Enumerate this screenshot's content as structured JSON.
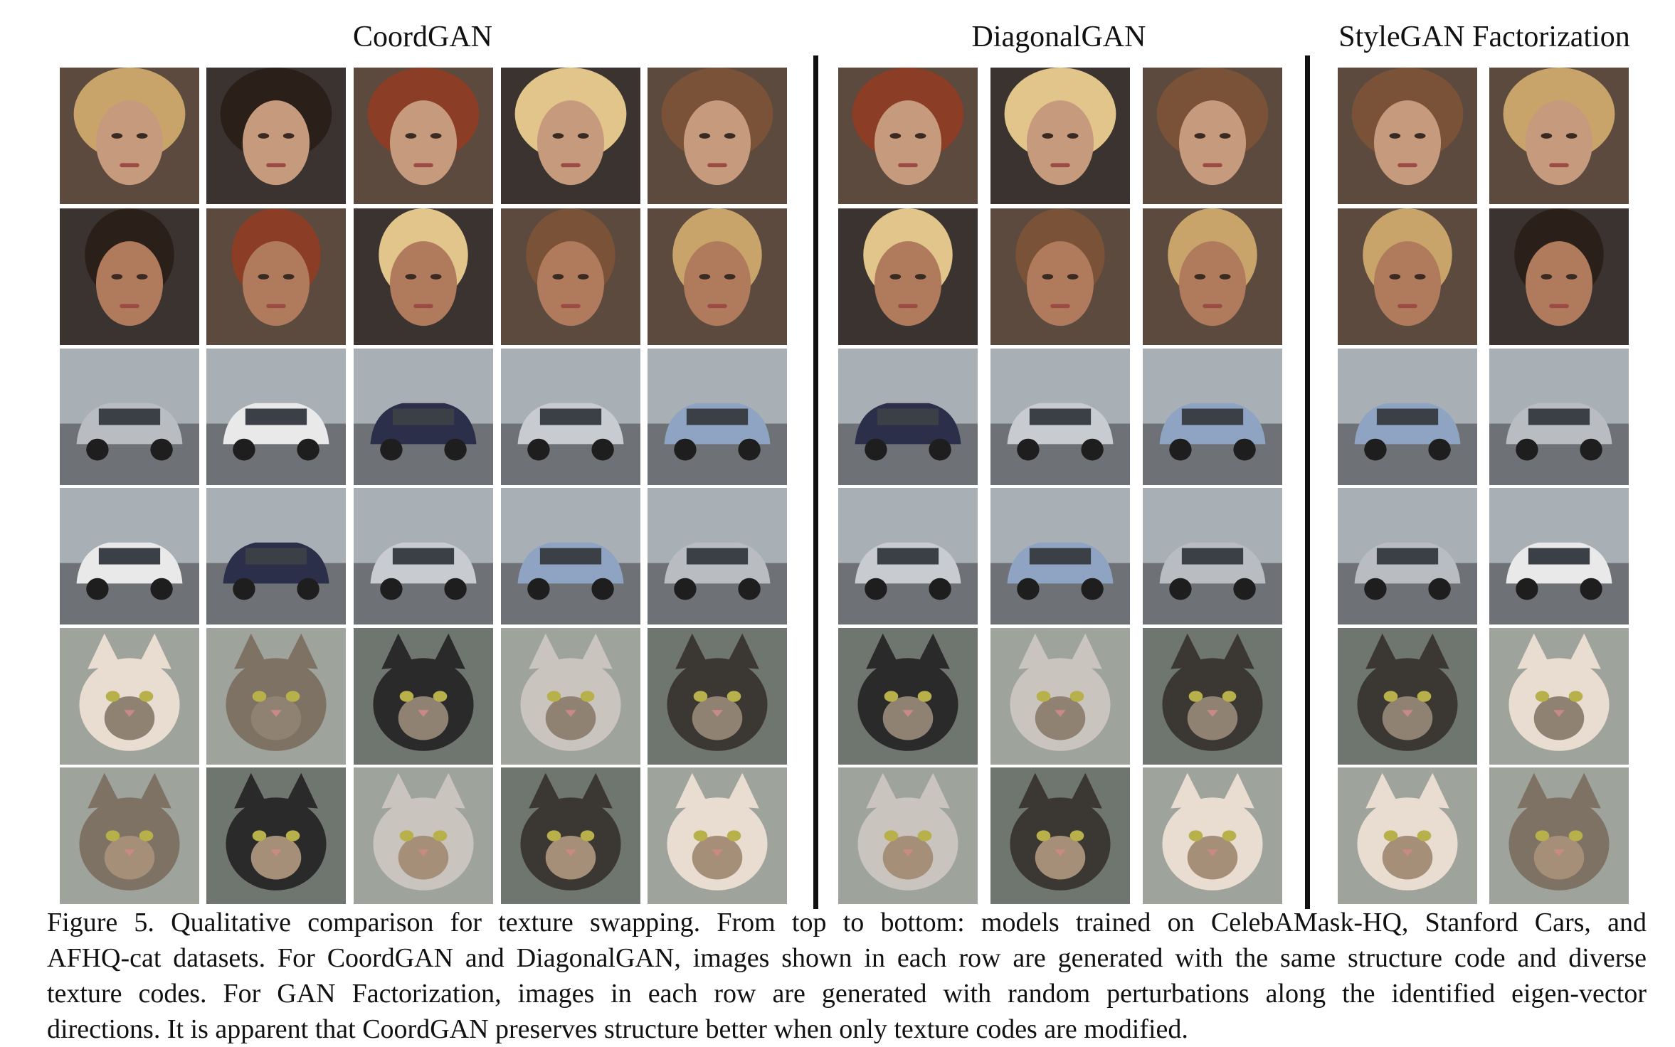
{
  "headers": {
    "coordgan": "CoordGAN",
    "diagonalgan": "DiagonalGAN",
    "stylegan_factorization": "StyleGAN Factorization"
  },
  "rows": [
    {
      "subject": "face-female",
      "tone": "#c69a7c"
    },
    {
      "subject": "face-male",
      "tone": "#b07a5c"
    },
    {
      "subject": "car-front",
      "tone": "#8a8f96"
    },
    {
      "subject": "car-angle",
      "tone": "#7b8088"
    },
    {
      "subject": "cat",
      "tone": "#8f8272"
    },
    {
      "subject": "cat",
      "tone": "#a58f78"
    }
  ],
  "caption": {
    "lines": [
      "Figure 5.  Qualitative comparison for texture swapping.  From top to bottom:  models trained on CelebAMask-HQ, Stanford Cars, and",
      "AFHQ-cat datasets. For CoordGAN and DiagonalGAN, images shown in each row are generated with the same structure code and diverse",
      "texture codes.  For GAN Factorization, images in each row are generated with random perturbations along the identified eigen-vector",
      "directions. It is apparent that CoordGAN preserves structure better when only texture codes are modified."
    ]
  }
}
